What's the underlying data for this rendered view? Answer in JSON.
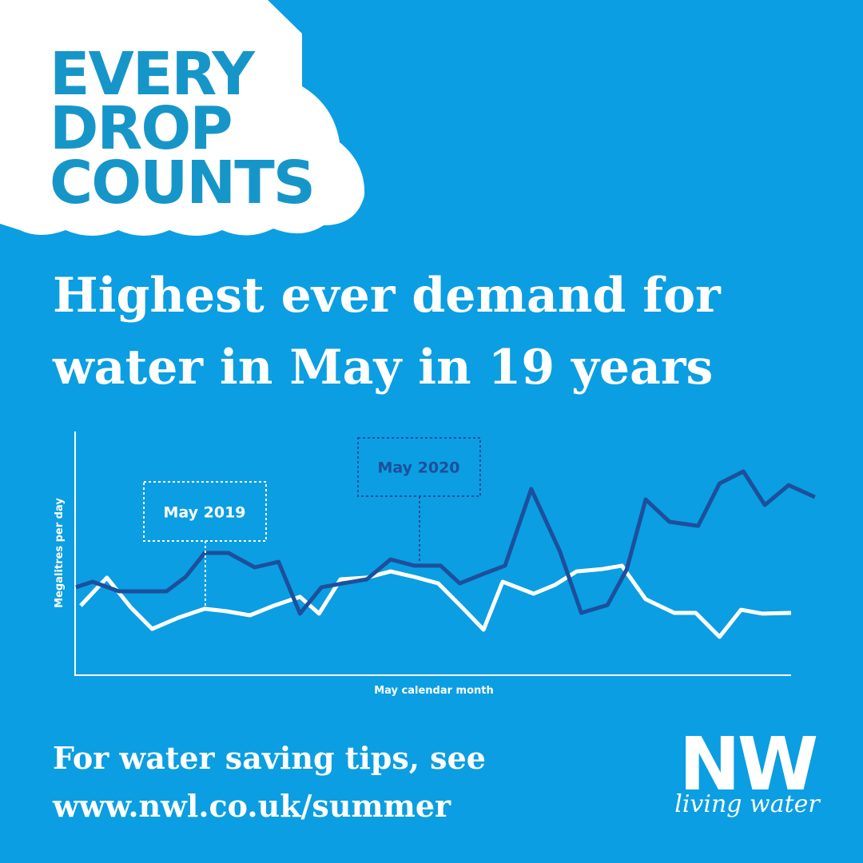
{
  "header": {
    "badge": [
      "EVERY",
      "DROP",
      "COUNTS"
    ],
    "headline": [
      "Highest ever demand for",
      "water in May in 19 years"
    ]
  },
  "chart_data": {
    "type": "line",
    "y_label": "Megalitres per day",
    "x_label": "May calendar month",
    "xlim": [
      0,
      30
    ],
    "ylim": [
      0,
      100
    ],
    "annotations": [
      "May 2019",
      "May 2020"
    ],
    "series": [
      {
        "color": "#ffffff",
        "x": [
          0.2,
          1.3,
          2.3,
          3.2,
          4.3,
          5.4,
          6.3,
          7.3,
          8.3,
          9.4,
          10.2,
          11.1,
          12.2,
          13.2,
          14.2,
          15.2,
          16.2,
          17.1,
          17.9,
          19.2,
          20.1,
          21.0,
          22.1,
          22.9,
          23.9,
          25.1,
          26.0,
          27.0,
          27.9,
          28.8,
          30.0
        ],
        "values": [
          29,
          40.7,
          28.3,
          19.3,
          24,
          27.7,
          26.7,
          25,
          29,
          32.7,
          25.7,
          40,
          40.7,
          43.3,
          41,
          38.3,
          28.3,
          19,
          39,
          34,
          37.7,
          43.3,
          44.3,
          45.7,
          31.7,
          26,
          26,
          16,
          27.3,
          25.7,
          26
        ]
      },
      {
        "color": "#1d4f9c",
        "x": [
          0,
          0.7,
          1.8,
          2.9,
          3.8,
          4.6,
          5.4,
          6.4,
          7.5,
          8.5,
          9.4,
          10.3,
          11.2,
          12.2,
          13.2,
          14.2,
          15.3,
          16.1,
          17.1,
          18.0,
          19.1,
          20.3,
          21.2,
          22.3,
          23.1,
          23.9,
          24.9,
          26.1,
          27.0,
          28.0,
          28.9,
          29.9,
          31.0
        ],
        "values": [
          36.7,
          39,
          35,
          35,
          35,
          41,
          51,
          51,
          45,
          47.3,
          25.7,
          36.7,
          38.3,
          40,
          48.3,
          45.7,
          45.7,
          38.3,
          42.3,
          45.7,
          77.7,
          51.7,
          26,
          29.3,
          44,
          73.3,
          64,
          62.3,
          80,
          85,
          71,
          79.3,
          74.3
        ]
      }
    ]
  },
  "footer": {
    "text": [
      "For water saving tips, see",
      "www.nwl.co.uk/summer"
    ],
    "logo": "NW",
    "tagline": "living water"
  }
}
